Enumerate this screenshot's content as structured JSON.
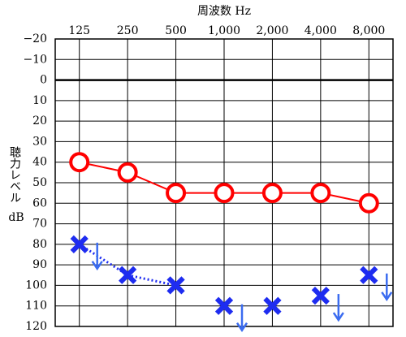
{
  "chart_data": {
    "type": "line",
    "title": "周波数 Hz",
    "y_label": "聴力レベル",
    "y_unit": "dB",
    "categories": [
      "125",
      "250",
      "500",
      "1,000",
      "2,000",
      "4,000",
      "8,000"
    ],
    "ylim": [
      120,
      -20
    ],
    "yticks": [
      {
        "value": -20,
        "label": "−20"
      },
      {
        "value": -10,
        "label": "−10"
      },
      0,
      10,
      20,
      30,
      40,
      50,
      60,
      70,
      80,
      90,
      100,
      110,
      120
    ],
    "grid": true,
    "series": [
      {
        "name": "air",
        "marker": "circle",
        "color": "#ff0000",
        "values": [
          40,
          45,
          55,
          55,
          55,
          55,
          60
        ],
        "line": "solid"
      },
      {
        "name": "bone",
        "marker": "cross",
        "color": "#1e2cf0",
        "values": [
          80,
          95,
          100,
          110,
          110,
          105,
          95
        ],
        "line": "dotted",
        "no_response": [
          true,
          false,
          false,
          true,
          false,
          true,
          true
        ],
        "arrow_color": "#3b6cf0"
      }
    ]
  }
}
